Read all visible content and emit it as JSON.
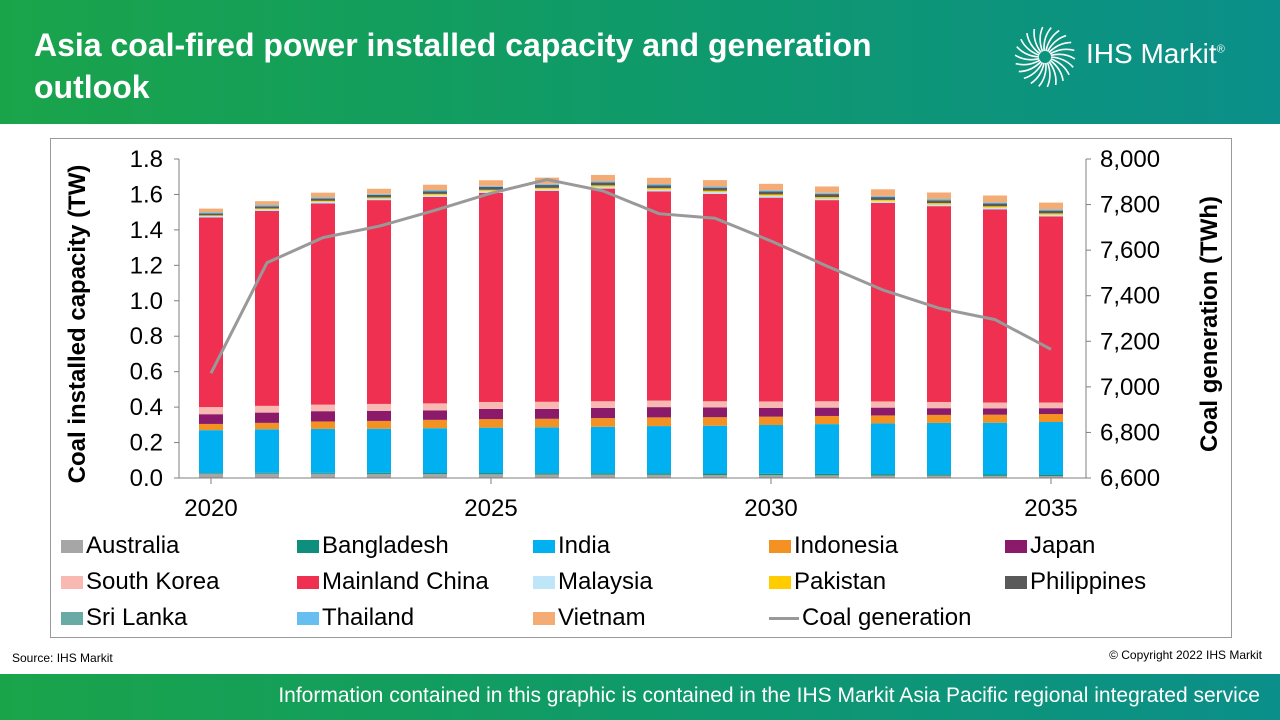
{
  "header": {
    "title": "Asia coal-fired power installed capacity and generation outlook",
    "logo_text": "IHS Markit",
    "logo_mark": "®",
    "logo_icon": "starburst-icon"
  },
  "source": "Source: IHS Markit",
  "copyright": "© Copyright  2022 IHS Markit",
  "footer_text": "Information contained in this graphic is contained in the IHS Markit Asia Pacific regional integrated service",
  "colors": {
    "header_start": "#1aa44a",
    "header_end": "#0b8f8a",
    "line": "#999999"
  },
  "chart_data": {
    "type": "bar",
    "stacked": true,
    "x": [
      2020,
      2021,
      2022,
      2023,
      2024,
      2025,
      2026,
      2027,
      2028,
      2029,
      2030,
      2031,
      2032,
      2033,
      2034,
      2035
    ],
    "xticks": [
      "2020",
      "2025",
      "2030",
      "2035"
    ],
    "ylabel": "Coal installed capacity (TW)",
    "ylabel_right": "Coal generation (TWh)",
    "ylim": [
      0,
      1.8
    ],
    "yticks": [
      "0.0",
      "0.2",
      "0.4",
      "0.6",
      "0.8",
      "1.0",
      "1.2",
      "1.4",
      "1.6",
      "1.8"
    ],
    "ylim_right": [
      6600,
      8000
    ],
    "yticks_right": [
      "6,600",
      "6,800",
      "7,000",
      "7,200",
      "7,400",
      "7,600",
      "7,800",
      "8,000"
    ],
    "grid": false,
    "legend_position": "bottom",
    "series": [
      {
        "name": "Australia",
        "color": "#a6a6a6",
        "values": [
          0.025,
          0.025,
          0.024,
          0.023,
          0.022,
          0.021,
          0.02,
          0.019,
          0.018,
          0.017,
          0.016,
          0.015,
          0.014,
          0.013,
          0.012,
          0.011
        ]
      },
      {
        "name": "Bangladesh",
        "color": "#0e8f7e",
        "values": [
          0.003,
          0.004,
          0.005,
          0.006,
          0.006,
          0.007,
          0.007,
          0.008,
          0.008,
          0.008,
          0.008,
          0.008,
          0.008,
          0.008,
          0.008,
          0.008
        ]
      },
      {
        "name": "India",
        "color": "#00b0f0",
        "values": [
          0.242,
          0.246,
          0.248,
          0.249,
          0.253,
          0.256,
          0.259,
          0.262,
          0.267,
          0.27,
          0.275,
          0.281,
          0.286,
          0.29,
          0.292,
          0.297
        ]
      },
      {
        "name": "Indonesia",
        "color": "#f39222",
        "values": [
          0.035,
          0.036,
          0.042,
          0.044,
          0.047,
          0.048,
          0.048,
          0.049,
          0.049,
          0.048,
          0.047,
          0.046,
          0.045,
          0.045,
          0.045,
          0.045
        ]
      },
      {
        "name": "Japan",
        "color": "#8b1a6b",
        "values": [
          0.055,
          0.058,
          0.058,
          0.057,
          0.053,
          0.058,
          0.056,
          0.057,
          0.058,
          0.055,
          0.05,
          0.047,
          0.044,
          0.038,
          0.036,
          0.033
        ]
      },
      {
        "name": "South Korea",
        "color": "#f8b9b3",
        "values": [
          0.04,
          0.038,
          0.037,
          0.039,
          0.04,
          0.039,
          0.04,
          0.038,
          0.037,
          0.035,
          0.036,
          0.036,
          0.035,
          0.035,
          0.033,
          0.032
        ]
      },
      {
        "name": "Mainland China",
        "color": "#ef3050",
        "values": [
          1.07,
          1.1,
          1.135,
          1.15,
          1.165,
          1.18,
          1.19,
          1.2,
          1.18,
          1.17,
          1.15,
          1.135,
          1.12,
          1.105,
          1.09,
          1.05
        ]
      },
      {
        "name": "Malaysia",
        "color": "#bfe6f8",
        "values": [
          0.008,
          0.009,
          0.009,
          0.009,
          0.01,
          0.01,
          0.01,
          0.01,
          0.01,
          0.01,
          0.01,
          0.009,
          0.009,
          0.009,
          0.009,
          0.009
        ]
      },
      {
        "name": "Pakistan",
        "color": "#ffcc00",
        "values": [
          0.004,
          0.005,
          0.006,
          0.006,
          0.007,
          0.007,
          0.007,
          0.008,
          0.008,
          0.008,
          0.008,
          0.008,
          0.008,
          0.008,
          0.008,
          0.008
        ]
      },
      {
        "name": "Philippines",
        "color": "#595959",
        "values": [
          0.011,
          0.012,
          0.013,
          0.014,
          0.015,
          0.016,
          0.016,
          0.017,
          0.017,
          0.017,
          0.017,
          0.017,
          0.016,
          0.016,
          0.016,
          0.016
        ]
      },
      {
        "name": "Sri Lanka",
        "color": "#6aaaa5",
        "values": [
          0.001,
          0.001,
          0.001,
          0.001,
          0.001,
          0.001,
          0.001,
          0.001,
          0.001,
          0.001,
          0.001,
          0.001,
          0.001,
          0.001,
          0.001,
          0.001
        ]
      },
      {
        "name": "Thailand",
        "color": "#66bff0",
        "values": [
          0.006,
          0.006,
          0.006,
          0.006,
          0.006,
          0.006,
          0.006,
          0.006,
          0.006,
          0.006,
          0.006,
          0.006,
          0.006,
          0.006,
          0.006,
          0.006
        ]
      },
      {
        "name": "Vietnam",
        "color": "#f5ab74",
        "values": [
          0.02,
          0.022,
          0.026,
          0.028,
          0.03,
          0.031,
          0.035,
          0.035,
          0.035,
          0.036,
          0.036,
          0.036,
          0.037,
          0.037,
          0.038,
          0.038
        ]
      }
    ],
    "line_series": {
      "name": "Coal generation",
      "axis": "right",
      "color": "#999999",
      "values": [
        7060,
        7545,
        7655,
        7705,
        7775,
        7850,
        7910,
        7860,
        7760,
        7740,
        7640,
        7530,
        7425,
        7345,
        7295,
        7165
      ]
    }
  }
}
